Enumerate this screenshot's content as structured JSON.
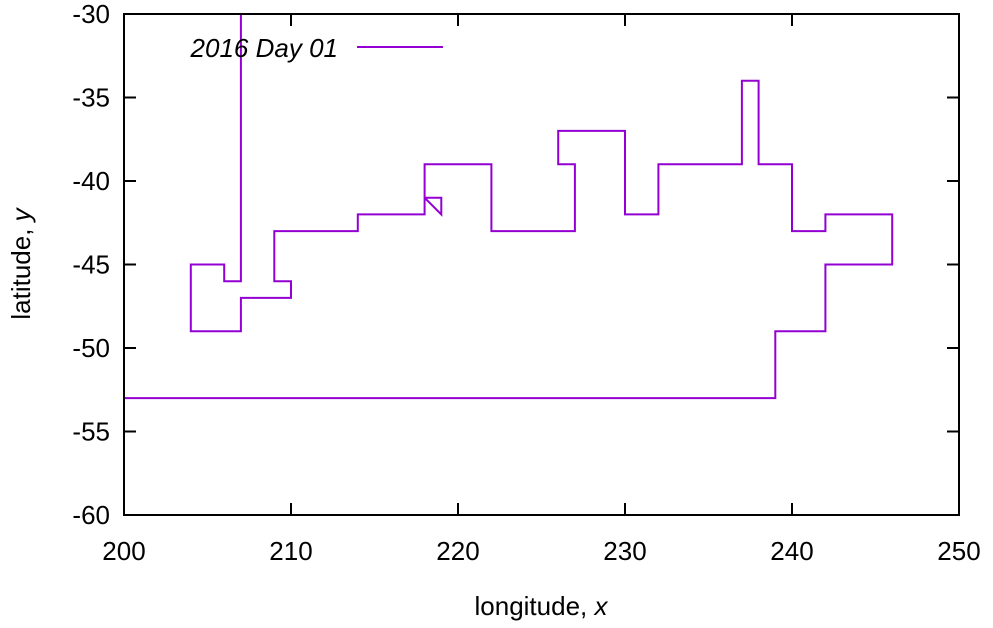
{
  "chart_data": {
    "type": "line",
    "xlabel": "longitude, ",
    "xlabel_var": "x",
    "ylabel": "latitude, ",
    "ylabel_var": "y",
    "xlim": [
      200,
      250
    ],
    "ylim": [
      -60,
      -30
    ],
    "xticks": [
      "200",
      "210",
      "220",
      "230",
      "240",
      "250"
    ],
    "yticks": [
      "-30",
      "-35",
      "-40",
      "-45",
      "-50",
      "-55",
      "-60"
    ],
    "grid": false,
    "legend_position": "top-left",
    "series": [
      {
        "name": "2016 Day 01",
        "color": "#9400d3",
        "x": [
          207,
          207,
          206,
          206,
          204,
          204,
          207,
          207,
          210,
          210,
          209,
          209,
          214,
          214,
          218,
          218,
          219,
          219,
          218,
          218,
          222,
          222,
          227,
          227,
          226,
          226,
          230,
          230,
          232,
          232,
          237,
          237,
          238,
          238,
          240,
          240,
          242,
          242,
          246,
          246,
          242,
          242,
          239,
          239,
          200
        ],
        "y": [
          -30,
          -46,
          -46,
          -45,
          -45,
          -49,
          -49,
          -47,
          -47,
          -46,
          -46,
          -43,
          -43,
          -42,
          -42,
          -41,
          -41,
          -42,
          -41,
          -39,
          -39,
          -43,
          -43,
          -39,
          -39,
          -37,
          -37,
          -42,
          -42,
          -39,
          -39,
          -34,
          -34,
          -39,
          -39,
          -43,
          -43,
          -42,
          -42,
          -45,
          -45,
          -49,
          -49,
          -53,
          -53
        ]
      }
    ]
  }
}
